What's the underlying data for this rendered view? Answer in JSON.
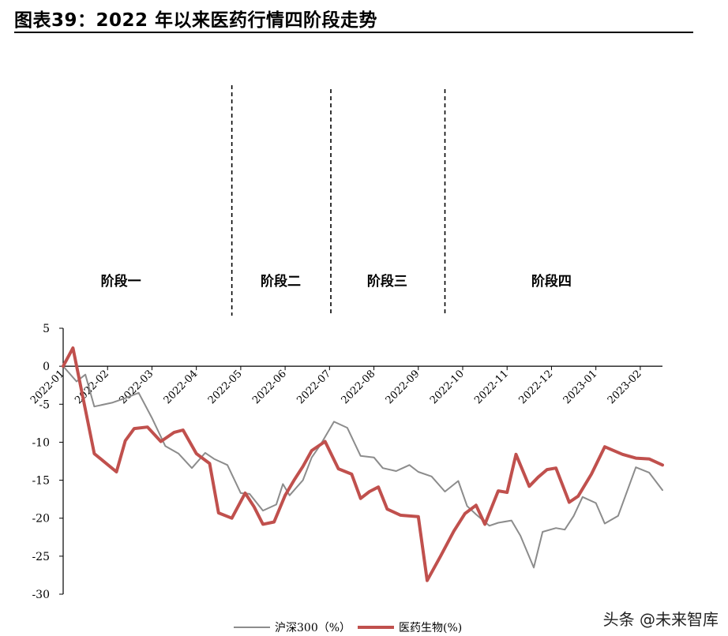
{
  "title": "图表39：2022 年以来医药行情四阶段走势",
  "watermark": "头条 @未来智库",
  "colors": {
    "csi300": "#8c8c8c",
    "pharma": "#c0504d",
    "axis": "#000000"
  },
  "chart_data": {
    "type": "line",
    "title": "",
    "xlabel": "",
    "ylabel": "",
    "ylim": [
      -30,
      5
    ],
    "yticks": [
      5,
      0,
      -5,
      -10,
      -15,
      -20,
      -25,
      -30
    ],
    "x_tick_labels": [
      "2022-01",
      "2022-02",
      "2022-03",
      "2022-04",
      "2022-05",
      "2022-06",
      "2022-07",
      "2022-08",
      "2022-09",
      "2022-10",
      "2022-11",
      "2022-12",
      "2023-01",
      "2023-02"
    ],
    "x_range": [
      0,
      13.5
    ],
    "legend_position": "bottom",
    "series": [
      {
        "name": "沪深300（%）",
        "x": [
          0,
          0.3,
          0.5,
          0.7,
          1.1,
          1.4,
          1.7,
          2.0,
          2.3,
          2.6,
          2.9,
          3.2,
          3.4,
          3.7,
          4.0,
          4.2,
          4.5,
          4.8,
          4.95,
          5.1,
          5.4,
          5.6,
          5.8,
          6.1,
          6.4,
          6.7,
          7.0,
          7.2,
          7.5,
          7.8,
          8.0,
          8.3,
          8.6,
          8.9,
          9.1,
          9.3,
          9.6,
          9.8,
          10.1,
          10.3,
          10.6,
          10.8,
          11.1,
          11.3,
          11.5,
          11.7,
          12.0,
          12.2,
          12.5,
          12.9,
          13.2,
          13.5
        ],
        "values": [
          0,
          -2,
          -1.1,
          -5.3,
          -4.8,
          -4.2,
          -3.5,
          -6.8,
          -10.5,
          -11.5,
          -13.4,
          -11.4,
          -12.2,
          -13.0,
          -16.7,
          -16.8,
          -19.0,
          -18.2,
          -15.5,
          -17.0,
          -15.0,
          -12.0,
          -10.3,
          -7.3,
          -8.1,
          -11.8,
          -12.0,
          -13.4,
          -13.8,
          -13.0,
          -13.9,
          -14.5,
          -16.5,
          -15.1,
          -18.4,
          -19.5,
          -21.0,
          -20.6,
          -20.3,
          -22.3,
          -26.5,
          -21.8,
          -21.3,
          -21.5,
          -19.7,
          -17.2,
          -18.0,
          -20.7,
          -19.7,
          -13.3,
          -14.0,
          -16.3
        ]
      },
      {
        "name": "医药生物(%)",
        "x": [
          0,
          0.22,
          0.7,
          1.2,
          1.4,
          1.6,
          1.9,
          2.2,
          2.5,
          2.7,
          3.0,
          3.3,
          3.5,
          3.8,
          4.1,
          4.3,
          4.5,
          4.75,
          5.0,
          5.2,
          5.4,
          5.6,
          5.9,
          6.2,
          6.5,
          6.7,
          6.9,
          7.1,
          7.3,
          7.6,
          8.0,
          8.2,
          8.5,
          8.8,
          9.05,
          9.3,
          9.5,
          9.8,
          10.0,
          10.2,
          10.5,
          10.7,
          10.9,
          11.1,
          11.4,
          11.6,
          11.9,
          12.2,
          12.6,
          12.9,
          13.2,
          13.5
        ],
        "values": [
          0,
          2.4,
          -11.5,
          -13.9,
          -9.8,
          -8.2,
          -8.0,
          -9.9,
          -8.7,
          -8.4,
          -11.5,
          -12.8,
          -19.3,
          -20.0,
          -16.7,
          -18.5,
          -20.8,
          -20.5,
          -17.0,
          -15.0,
          -13.2,
          -11.1,
          -9.9,
          -13.5,
          -14.2,
          -17.4,
          -16.5,
          -15.9,
          -18.8,
          -19.6,
          -19.8,
          -28.2,
          -25.0,
          -21.7,
          -19.4,
          -18.3,
          -20.8,
          -16.4,
          -16.6,
          -11.6,
          -15.8,
          -14.6,
          -13.6,
          -13.4,
          -17.9,
          -17.1,
          -14.2,
          -10.6,
          -11.6,
          -12.1,
          -12.2,
          -13.0
        ]
      }
    ],
    "phase_dividers_x": [
      3.8,
      6.03,
      8.6
    ],
    "phases": [
      {
        "label": "阶段一",
        "x": 1.3
      },
      {
        "label": "阶段二",
        "x": 4.9
      },
      {
        "label": "阶段三",
        "x": 7.3
      },
      {
        "label": "阶段四",
        "x": 11.0
      }
    ]
  }
}
